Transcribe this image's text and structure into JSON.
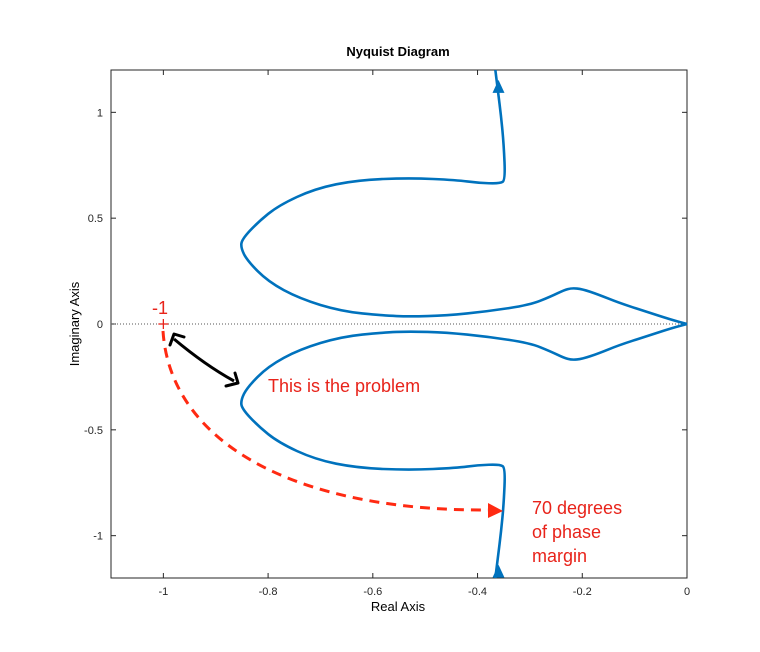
{
  "chart_data": {
    "type": "line",
    "title": "Nyquist Diagram",
    "xlabel": "Real Axis",
    "ylabel": "Imaginary Axis",
    "xlim": [
      -1.1,
      0
    ],
    "ylim": [
      -1.2,
      1.2
    ],
    "xticks": [
      -1,
      -0.8,
      -0.6,
      -0.4,
      -0.2,
      0
    ],
    "xtick_labels": [
      "-1",
      "-0.8",
      "-0.6",
      "-0.4",
      "-0.2",
      "0"
    ],
    "yticks": [
      1,
      0.5,
      0,
      -0.5,
      -1
    ],
    "ytick_labels": [
      "1",
      "0.5",
      "0",
      "-0.5",
      "-1"
    ],
    "grid": false,
    "series": [
      {
        "color": "#0072BD",
        "x": [
          -0.366,
          -0.361,
          -0.355,
          -0.35,
          -0.347,
          -0.357,
          -0.4,
          -0.44,
          -0.53,
          -0.63,
          -0.71,
          -0.78,
          -0.82,
          -0.85,
          -0.852,
          -0.84,
          -0.8,
          -0.74,
          -0.66,
          -0.58,
          -0.53,
          -0.46,
          -0.38,
          -0.3,
          -0.26,
          -0.235,
          -0.22,
          -0.2,
          -0.17,
          -0.13,
          -0.08,
          -0.03,
          0
        ],
        "y": [
          1.2,
          1.1,
          0.98,
          0.85,
          0.68,
          0.663,
          0.667,
          0.68,
          0.69,
          0.68,
          0.64,
          0.56,
          0.48,
          0.4,
          0.36,
          0.3,
          0.2,
          0.12,
          0.06,
          0.04,
          0.035,
          0.04,
          0.06,
          0.09,
          0.13,
          0.16,
          0.17,
          0.165,
          0.14,
          0.1,
          0.06,
          0.02,
          0
        ]
      }
    ],
    "arrows": [
      {
        "x": -0.36,
        "y": 1.12,
        "direction": "up"
      },
      {
        "x": -0.36,
        "y": -1.17,
        "direction": "up"
      }
    ],
    "critical_point": {
      "x": -1,
      "y": 0,
      "label": "-1",
      "color": "#E8231A"
    },
    "annotations": [
      {
        "text": "This is the problem",
        "color": "#E8231A"
      },
      {
        "lines": [
          "70 degrees",
          "of phase",
          "margin"
        ],
        "color": "#E8231A"
      }
    ]
  }
}
